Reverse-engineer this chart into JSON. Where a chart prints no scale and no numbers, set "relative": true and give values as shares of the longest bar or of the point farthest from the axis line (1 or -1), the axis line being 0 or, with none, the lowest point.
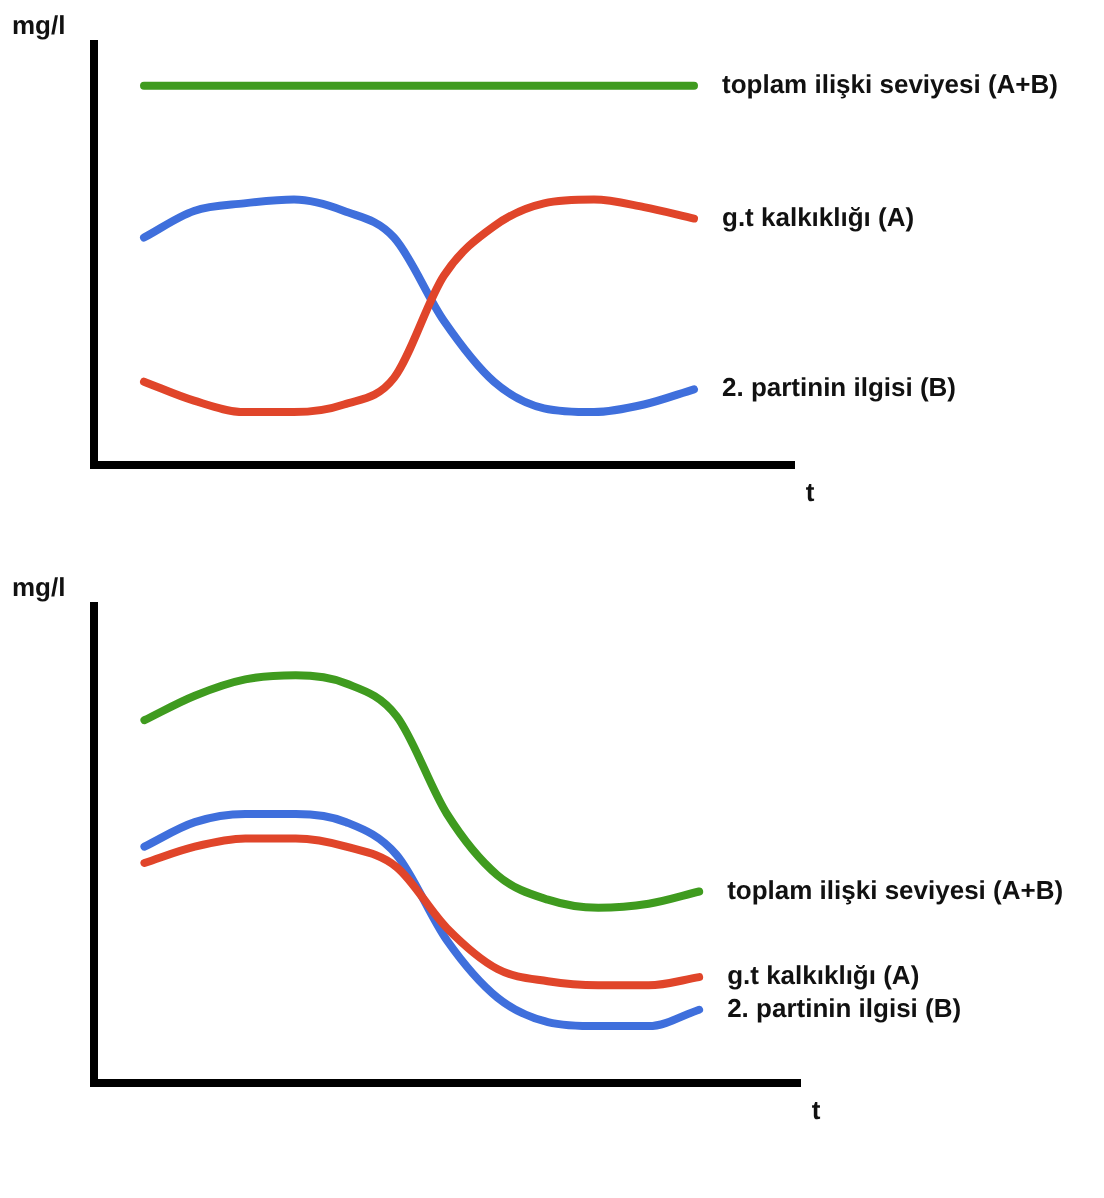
{
  "chart_data": [
    {
      "type": "line",
      "xlabel": "t",
      "ylabel": "mg/l",
      "relative": true,
      "grid": false,
      "legend": false,
      "marker": "none",
      "line_style": "solid",
      "categories": [
        null,
        null,
        null,
        null,
        null,
        null,
        null,
        null,
        null,
        null,
        null,
        null,
        null,
        null,
        null
      ],
      "series": [
        {
          "name": "toplam ilişki seviyesi (A+B)",
          "color": "#3f9b1f",
          "values": [
            null,
            1,
            1,
            1,
            1,
            1,
            1,
            1,
            1,
            1,
            1,
            1,
            1,
            null,
            null
          ]
        },
        {
          "name": "g.t kalkıklığı (A)",
          "color": "#e0452a",
          "values": [
            null,
            0.22,
            0.17,
            0.14,
            0.14,
            0.16,
            0.23,
            0.5,
            0.63,
            0.69,
            0.7,
            0.68,
            0.65,
            null,
            null
          ]
        },
        {
          "name": "2. partinin ilgisi (B)",
          "color": "#3f6fdc",
          "values": [
            null,
            0.6,
            0.67,
            0.69,
            0.7,
            0.67,
            0.6,
            0.38,
            0.22,
            0.15,
            0.14,
            0.16,
            0.2,
            null,
            null
          ]
        }
      ]
    },
    {
      "type": "line",
      "xlabel": "t",
      "ylabel": "mg/l",
      "relative": true,
      "grid": false,
      "legend": false,
      "marker": "none",
      "line_style": "solid",
      "categories": [
        null,
        null,
        null,
        null,
        null,
        null,
        null,
        null,
        null,
        null,
        null,
        null,
        null,
        null,
        null
      ],
      "series": [
        {
          "name": "toplam ilişki seviyesi (A+B)",
          "color": "#3f9b1f",
          "values": [
            null,
            0.89,
            0.95,
            0.99,
            1,
            0.98,
            0.9,
            0.66,
            0.51,
            0.45,
            0.43,
            0.44,
            0.47,
            null,
            null
          ]
        },
        {
          "name": "g.t kalkıklığı (A)",
          "color": "#e0452a",
          "values": [
            null,
            0.54,
            0.58,
            0.6,
            0.6,
            0.58,
            0.53,
            0.38,
            0.28,
            0.25,
            0.24,
            0.24,
            0.26,
            null,
            null
          ]
        },
        {
          "name": "2. partinin ilgisi (B)",
          "color": "#3f6fdc",
          "values": [
            null,
            0.58,
            0.64,
            0.66,
            0.66,
            0.64,
            0.56,
            0.35,
            0.21,
            0.15,
            0.14,
            0.14,
            0.18,
            null,
            null
          ]
        }
      ]
    }
  ]
}
